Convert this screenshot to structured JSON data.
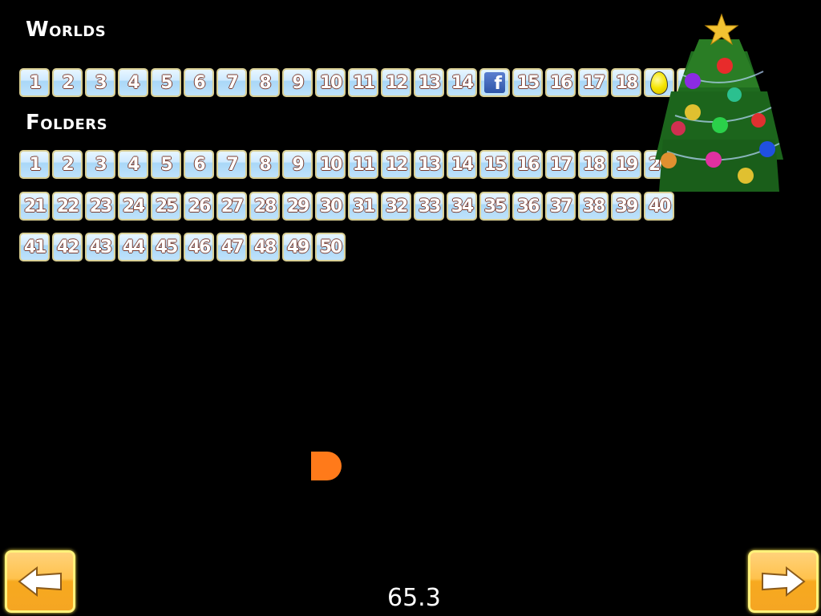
{
  "worlds": {
    "title": "Worlds",
    "items": [
      {
        "label": "1"
      },
      {
        "label": "2"
      },
      {
        "label": "3"
      },
      {
        "label": "4"
      },
      {
        "label": "5"
      },
      {
        "label": "6"
      },
      {
        "label": "7"
      },
      {
        "label": "8"
      },
      {
        "label": "9"
      },
      {
        "label": "10"
      },
      {
        "label": "11"
      },
      {
        "label": "12"
      },
      {
        "label": "13"
      },
      {
        "label": "14"
      },
      {
        "icon": "facebook-icon"
      },
      {
        "label": "15"
      },
      {
        "label": "16"
      },
      {
        "label": "17"
      },
      {
        "label": "18"
      },
      {
        "icon": "golden-egg-icon"
      },
      {
        "icon": "hidden"
      }
    ]
  },
  "folders": {
    "title": "Folders",
    "rows": [
      [
        "1",
        "2",
        "3",
        "4",
        "5",
        "6",
        "7",
        "8",
        "9",
        "10",
        "11",
        "12",
        "13",
        "14",
        "15",
        "16",
        "17",
        "18",
        "19",
        "20"
      ],
      [
        "21",
        "22",
        "23",
        "24",
        "25",
        "26",
        "27",
        "28",
        "29",
        "30",
        "31",
        "32",
        "33",
        "34",
        "35",
        "36",
        "37",
        "38",
        "39",
        "40"
      ],
      [
        "41",
        "42",
        "43",
        "44",
        "45",
        "46",
        "47",
        "48",
        "49",
        "50"
      ]
    ]
  },
  "nav": {
    "prev_icon": "arrow-left-icon",
    "next_icon": "arrow-right-icon"
  },
  "fps": "65.3",
  "colors": {
    "tile": "#bfe2fb",
    "nav_button": "#f5a623",
    "dot": "#ff7a1a"
  }
}
